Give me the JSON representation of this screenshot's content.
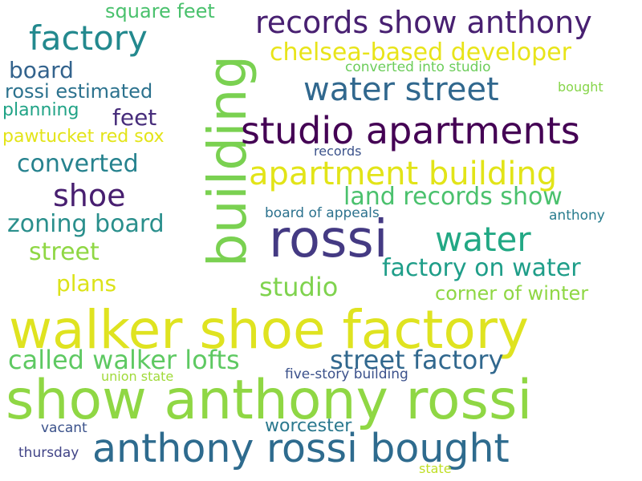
{
  "words": [
    {
      "text": "walker shoe factory",
      "color": "#dfe320"
    },
    {
      "text": "show anthony rossi",
      "color": "#8fd744"
    },
    {
      "text": "anthony rossi bought",
      "color": "#2e6b8e"
    },
    {
      "text": "rossi",
      "color": "#443a83"
    },
    {
      "text": "building",
      "color": "#7ad151"
    },
    {
      "text": "studio apartments",
      "color": "#440154"
    },
    {
      "text": "apartment building",
      "color": "#e2e418"
    },
    {
      "text": "records show anthony",
      "color": "#482071"
    },
    {
      "text": "factory",
      "color": "#23898e"
    },
    {
      "text": "water street",
      "color": "#31688e"
    },
    {
      "text": "water",
      "color": "#22a884"
    },
    {
      "text": "chelsea-based developer",
      "color": "#e8e419"
    },
    {
      "text": "land records show",
      "color": "#4ac16d"
    },
    {
      "text": "shoe",
      "color": "#481f70"
    },
    {
      "text": "called walker lofts",
      "color": "#5ec962"
    },
    {
      "text": "street factory",
      "color": "#31688e"
    },
    {
      "text": "factory on water",
      "color": "#1f9e89"
    },
    {
      "text": "zoning board",
      "color": "#2a8f8c"
    },
    {
      "text": "studio",
      "color": "#7fd34e"
    },
    {
      "text": "square feet",
      "color": "#4ac16d"
    },
    {
      "text": "converted",
      "color": "#26828e"
    },
    {
      "text": "street",
      "color": "#8fd744"
    },
    {
      "text": "board",
      "color": "#33638d"
    },
    {
      "text": "rossi estimated",
      "color": "#2c728e"
    },
    {
      "text": "corner of winter",
      "color": "#8fd744"
    },
    {
      "text": "plans",
      "color": "#dce319"
    },
    {
      "text": "feet",
      "color": "#472d7b"
    },
    {
      "text": "planning",
      "color": "#20a386"
    },
    {
      "text": "pawtucket red sox",
      "color": "#e3e418"
    },
    {
      "text": "worcester",
      "color": "#2a788e"
    },
    {
      "text": "five-story building",
      "color": "#3b518b"
    },
    {
      "text": "converted into studio",
      "color": "#6ccd5a"
    },
    {
      "text": "board of appeals",
      "color": "#2c728e"
    },
    {
      "text": "union state",
      "color": "#a0da39"
    },
    {
      "text": "thursday",
      "color": "#414487"
    },
    {
      "text": "vacant",
      "color": "#3b528b"
    },
    {
      "text": "records",
      "color": "#3b528b"
    },
    {
      "text": "bought",
      "color": "#86d549"
    },
    {
      "text": "anthony",
      "color": "#287c8e"
    },
    {
      "text": "state",
      "color": "#c0df25"
    }
  ]
}
